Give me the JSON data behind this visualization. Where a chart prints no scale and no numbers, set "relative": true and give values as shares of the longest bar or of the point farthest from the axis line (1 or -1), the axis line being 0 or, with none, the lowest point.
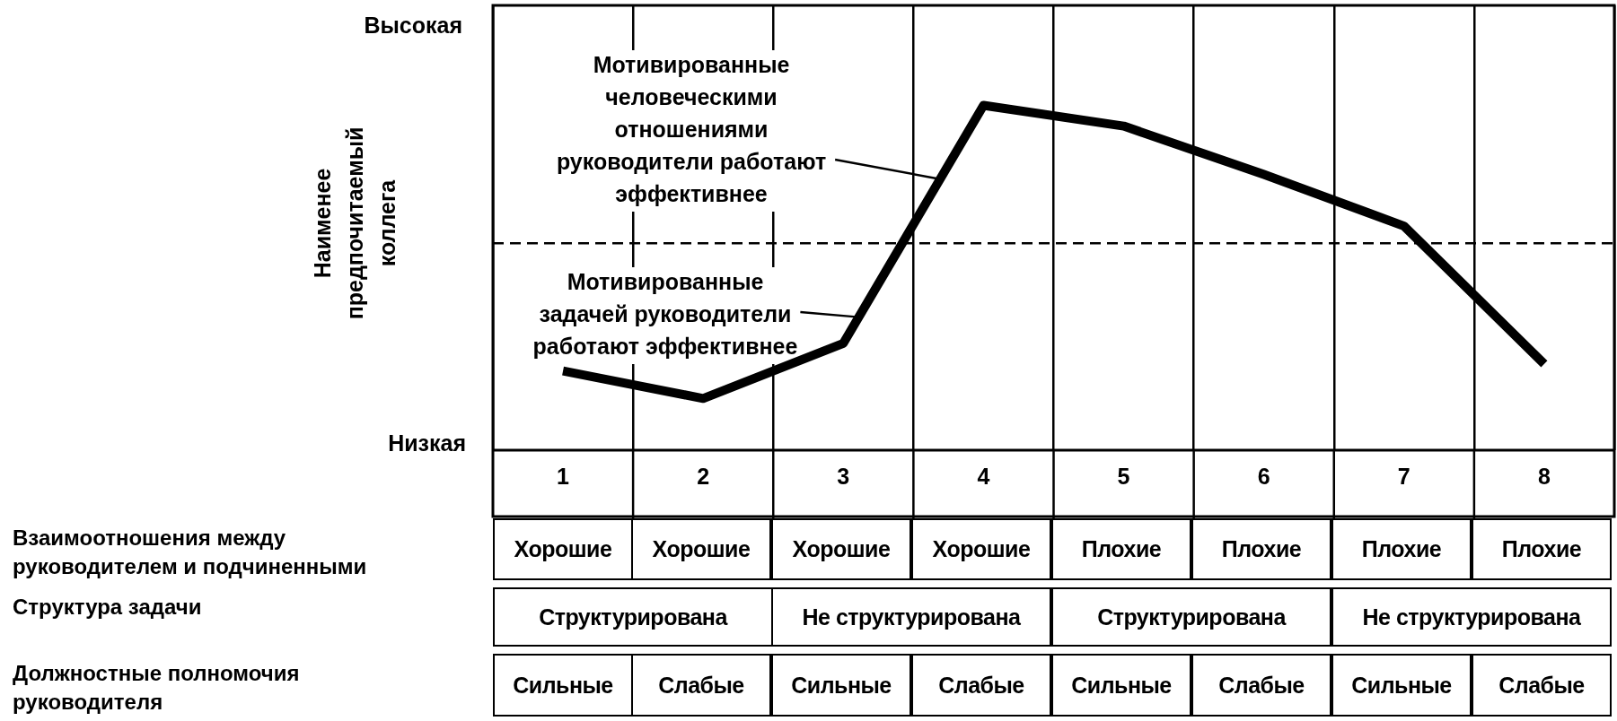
{
  "chart_data": {
    "type": "line",
    "relative": true,
    "ylabel": "Наименее предпочитаемый коллега",
    "categories": [
      "1",
      "2",
      "3",
      "4",
      "5",
      "6",
      "7",
      "8"
    ],
    "series": [
      {
        "color": "#000000",
        "values": [
          0.23,
          0.15,
          0.31,
          1,
          0.94,
          0.8,
          0.65,
          0.25
        ]
      }
    ],
    "ref_lines": [
      {
        "axis": "y",
        "value": 0.6,
        "line_style": "dashed",
        "color": "#000000"
      }
    ],
    "grid": "x",
    "legend": false,
    "annotations": [
      "Высокая",
      "Низкая",
      "Мотивированные человеческими отношениями руководители работают эффективнее",
      "Мотивированные задачей руководители работают эффективнее",
      "Взаимоотношения между руководителем и подчиненными",
      "Хорошие",
      "Хорошие",
      "Хорошие",
      "Хорошие",
      "Плохие",
      "Плохие",
      "Плохие",
      "Плохие",
      "Структура задачи",
      "Структурирована",
      "Не структурирована",
      "Структурирована",
      "Не структурирована",
      "Должностные полномочия руководителя",
      "Сильные",
      "Слабые",
      "Сильные",
      "Слабые",
      "Сильные",
      "Слабые",
      "Сильные",
      "Слабые"
    ]
  }
}
